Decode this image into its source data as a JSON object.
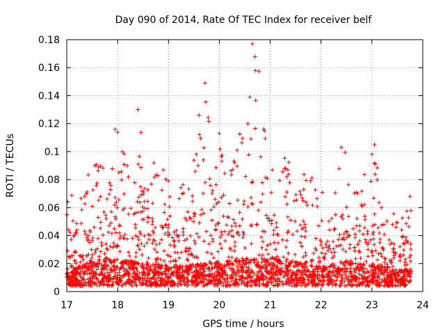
{
  "chart_data": {
    "type": "scatter",
    "title": "Day 090 of 2014, Rate Of TEC Index for receiver belf",
    "xlabel": "GPS time / hours",
    "ylabel": "ROTI / TECUs",
    "xlim": [
      17,
      24
    ],
    "ylim": [
      0,
      0.18
    ],
    "xticks": [
      17,
      18,
      19,
      20,
      21,
      22,
      23,
      24
    ],
    "yticks": [
      0,
      0.02,
      0.04,
      0.06,
      0.08,
      0.1,
      0.12,
      0.14,
      0.16,
      0.18
    ],
    "xtick_labels": [
      "17",
      "18",
      "19",
      "20",
      "21",
      "22",
      "23",
      "24"
    ],
    "ytick_labels": [
      "0",
      "0.02",
      "0.04",
      "0.06",
      "0.08",
      "0.1",
      "0.12",
      "0.14",
      "0.16",
      "0.18"
    ],
    "grid": true,
    "marker": "+",
    "color": "#ff0000",
    "x_range_data": [
      17.0,
      23.77
    ],
    "notable_points": [
      {
        "x": 20.65,
        "y": 0.177
      },
      {
        "x": 19.72,
        "y": 0.149
      },
      {
        "x": 20.6,
        "y": 0.139
      },
      {
        "x": 18.4,
        "y": 0.13
      },
      {
        "x": 19.6,
        "y": 0.126
      },
      {
        "x": 17.95,
        "y": 0.116
      },
      {
        "x": 20.0,
        "y": 0.113
      },
      {
        "x": 23.05,
        "y": 0.105
      },
      {
        "x": 22.4,
        "y": 0.103
      },
      {
        "x": 17.55,
        "y": 0.09
      },
      {
        "x": 18.9,
        "y": 0.087
      },
      {
        "x": 21.3,
        "y": 0.088
      },
      {
        "x": 23.75,
        "y": 0.068
      }
    ],
    "cluster_profile": {
      "x": [
        17.0,
        17.25,
        17.5,
        17.75,
        18.0,
        18.25,
        18.5,
        18.75,
        19.0,
        19.25,
        19.5,
        19.75,
        20.0,
        20.25,
        20.5,
        20.75,
        21.0,
        21.25,
        21.5,
        21.75,
        22.0,
        22.25,
        22.5,
        22.75,
        23.0,
        23.25,
        23.5,
        23.75
      ],
      "max": [
        0.075,
        0.064,
        0.092,
        0.098,
        0.117,
        0.09,
        0.13,
        0.086,
        0.08,
        0.08,
        0.1,
        0.149,
        0.113,
        0.09,
        0.14,
        0.177,
        0.09,
        0.1,
        0.086,
        0.086,
        0.07,
        0.08,
        0.103,
        0.08,
        0.105,
        0.07,
        0.05,
        0.068
      ],
      "base": [
        0.012,
        0.014,
        0.018,
        0.02,
        0.02,
        0.018,
        0.016,
        0.016,
        0.014,
        0.014,
        0.016,
        0.016,
        0.018,
        0.018,
        0.02,
        0.02,
        0.02,
        0.02,
        0.018,
        0.016,
        0.014,
        0.016,
        0.018,
        0.016,
        0.016,
        0.014,
        0.012,
        0.012
      ]
    }
  }
}
